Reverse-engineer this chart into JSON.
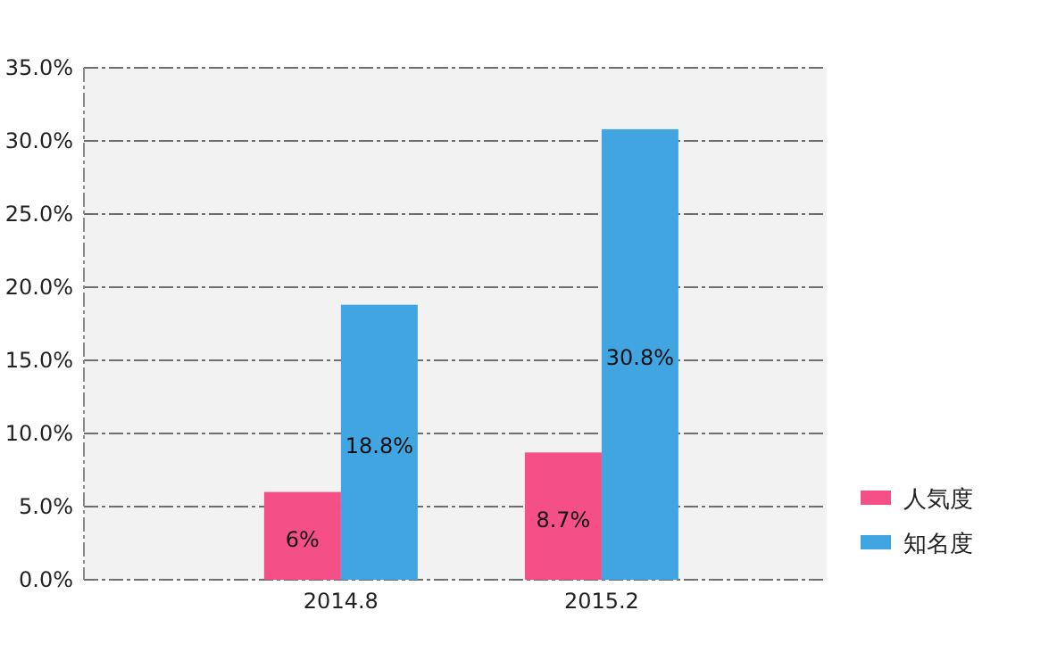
{
  "chart_data": {
    "type": "bar",
    "categories": [
      "2014.8",
      "2015.2"
    ],
    "series": [
      {
        "name": "人気度",
        "color": "#f44f86",
        "values": [
          6,
          8.7
        ]
      },
      {
        "name": "知名度",
        "color": "#40a5e0",
        "values": [
          18.8,
          30.8
        ]
      }
    ],
    "ylim": [
      0,
      35
    ],
    "yticks": [
      {
        "value": 0,
        "label": "0.0%"
      },
      {
        "value": 5,
        "label": "5.0%"
      },
      {
        "value": 10,
        "label": "10.0%"
      },
      {
        "value": 15,
        "label": "15.0%"
      },
      {
        "value": 20,
        "label": "20.0%"
      },
      {
        "value": 25,
        "label": "25.0%"
      },
      {
        "value": 30,
        "label": "30.0%"
      },
      {
        "value": 35,
        "label": "35.0%"
      }
    ],
    "value_labels": [
      [
        "6%",
        "8.7%"
      ],
      [
        "18.8%",
        "30.8%"
      ]
    ],
    "grid": "y",
    "legend": "right"
  }
}
